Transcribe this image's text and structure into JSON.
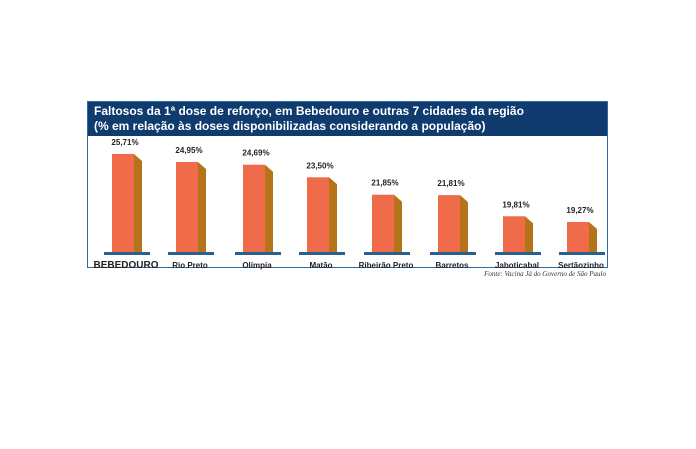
{
  "chart_data": {
    "type": "bar",
    "title": "Faltosos da 1ª dose de reforço, em Bebedouro e outras 7 cidades da região",
    "subtitle": "(% em relação às doses disponibilizadas considerando a população)",
    "categories": [
      "BEBEDOURO",
      "Rio Preto",
      "Olímpia",
      "Matão",
      "Ribeirão Preto",
      "Barretos",
      "Jaboticabal",
      "Sertãozinho"
    ],
    "values": [
      25.71,
      24.95,
      24.69,
      23.5,
      21.85,
      21.81,
      19.81,
      19.27
    ],
    "value_labels": [
      "25,71%",
      "24,95%",
      "24,69%",
      "23,50%",
      "21,85%",
      "21,81%",
      "19,81%",
      "19,27%"
    ],
    "source": "Fonte: Vacina Já do Governo de São Paulo",
    "colors": {
      "bar_front": "#f06b4a",
      "bar_side": "#b5731a",
      "baseline": "#2a5f8f",
      "header": "#0f3b6e"
    }
  }
}
